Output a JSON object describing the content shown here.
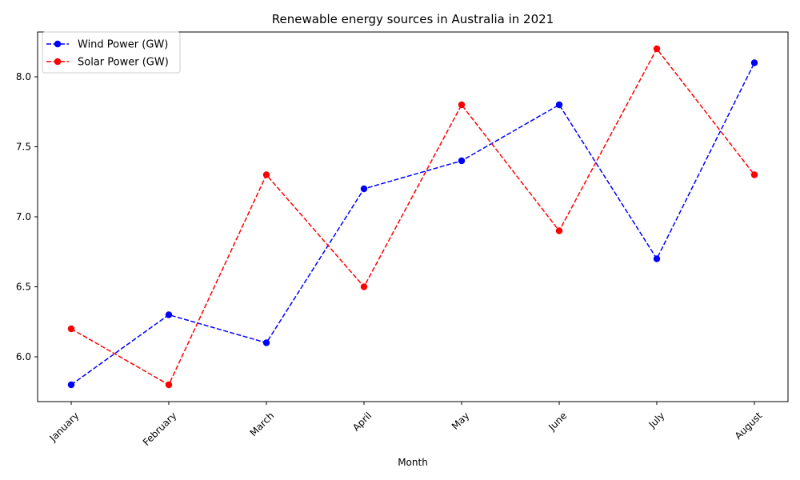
{
  "chart_data": {
    "type": "line",
    "title": "Renewable energy sources in Australia in 2021",
    "xlabel": "Month",
    "ylabel": "",
    "categories": [
      "January",
      "February",
      "March",
      "April",
      "May",
      "June",
      "July",
      "August"
    ],
    "series": [
      {
        "name": "Wind Power (GW)",
        "color": "#0000ff",
        "line_style": "dashed",
        "marker": "circle",
        "values": [
          5.8,
          6.3,
          6.1,
          7.2,
          7.4,
          7.8,
          6.7,
          8.1
        ]
      },
      {
        "name": "Solar Power (GW)",
        "color": "#ff0000",
        "line_style": "dashed",
        "marker": "circle",
        "values": [
          6.2,
          5.8,
          7.3,
          6.5,
          7.8,
          6.9,
          8.2,
          7.3
        ]
      }
    ],
    "ylim": [
      5.68,
      8.32
    ],
    "yticks": [
      "6.0",
      "6.5",
      "7.0",
      "7.5",
      "8.0"
    ],
    "grid": false,
    "legend_position": "upper-left"
  }
}
